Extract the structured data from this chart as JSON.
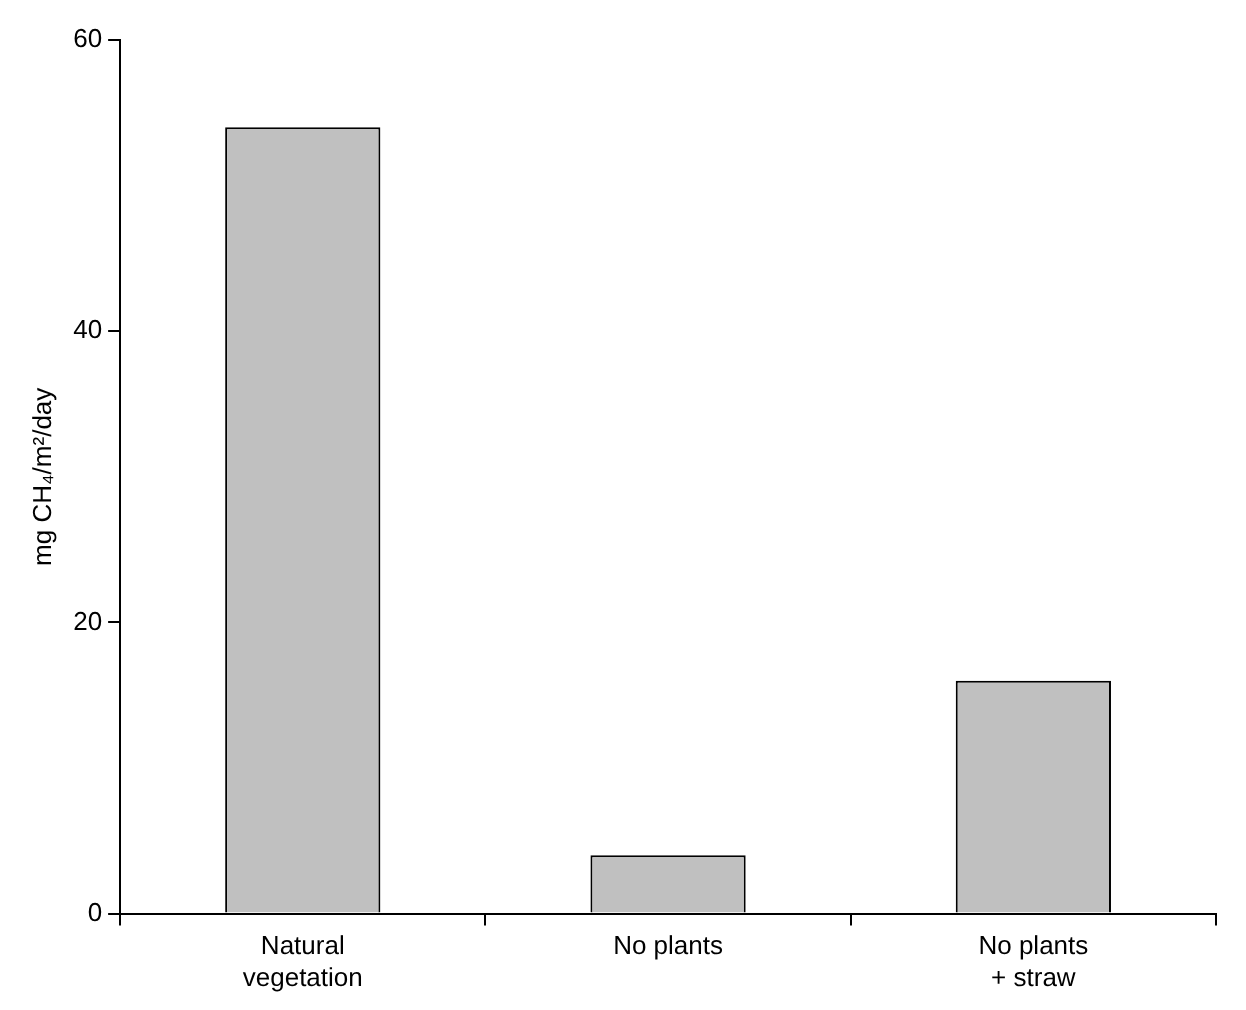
{
  "chart_data": {
    "type": "bar",
    "ylabel": "mg CH₄/m²/day",
    "categories": [
      "Natural vegetation",
      "No plants",
      "No plants + straw"
    ],
    "values": [
      54,
      4,
      16
    ],
    "color": "#c0c0c0",
    "ylim": [
      0,
      60
    ],
    "yticks": [
      0,
      20,
      40,
      60
    ],
    "grid": false,
    "legend": false
  }
}
